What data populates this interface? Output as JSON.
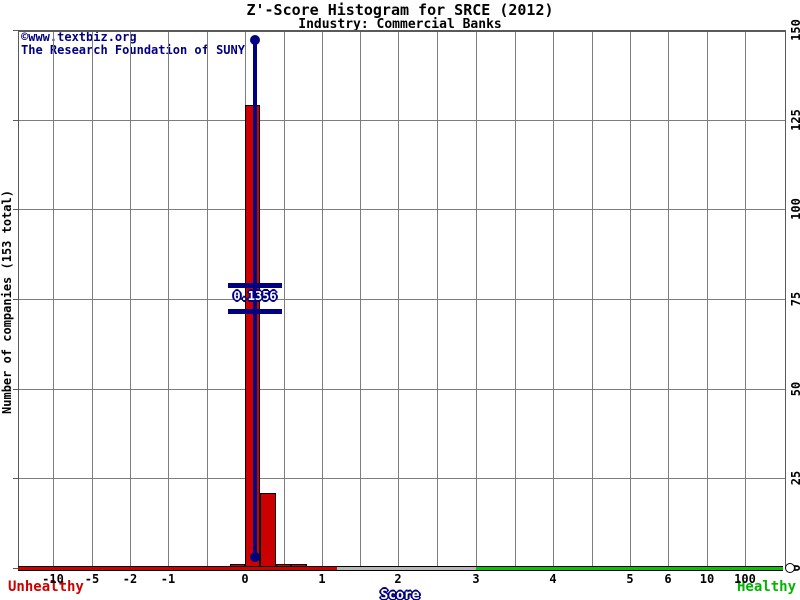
{
  "header": {
    "title": "Z'-Score Histogram for SRCE (2012)",
    "subtitle": "Industry: Commercial Banks"
  },
  "credit": {
    "line1": "©www.textbiz.org",
    "line2": "The Research Foundation of SUNY"
  },
  "axes": {
    "y_label": "Number of companies (153 total)",
    "x_label": "Score"
  },
  "zone_labels": {
    "unhealthy": "Unhealthy",
    "healthy": "Healthy"
  },
  "marker": {
    "label": "0.1356"
  },
  "colors": {
    "bar_red": "#cc0000",
    "marker_navy": "#000080",
    "healthy_green": "#00b400",
    "axis_red": "#cc0000",
    "axis_gray": "#b8b8b8",
    "axis_green": "#00c800",
    "gridline_gray": "#7d7d7d"
  },
  "chart_data": {
    "type": "bar",
    "title": "Z'-Score Histogram for SRCE (2012)",
    "subtitle": "Industry: Commercial Banks",
    "xlabel": "Score",
    "ylabel": "Number of companies (153 total)",
    "total_companies": 153,
    "company": "SRCE",
    "year": 2012,
    "industry": "Commercial Banks",
    "mean_z_score": 0.1356,
    "bin_width": 0.2,
    "bins": [
      {
        "from": -0.2,
        "to": 0.0,
        "count": 1
      },
      {
        "from": 0.0,
        "to": 0.2,
        "count": 129
      },
      {
        "from": 0.2,
        "to": 0.4,
        "count": 21
      },
      {
        "from": 0.4,
        "to": 0.6,
        "count": 1
      },
      {
        "from": 0.6,
        "to": 0.8,
        "count": 1
      }
    ],
    "x_ticks": [
      -10,
      -5,
      -2,
      -1,
      0,
      1,
      2,
      3,
      4,
      5,
      6,
      10,
      100
    ],
    "x_minor_gridline_scores": [
      -0.5,
      0.5,
      1.5,
      2.5,
      3.5,
      4.5
    ],
    "y_ticks": [
      0,
      25,
      50,
      75,
      100,
      125,
      150
    ],
    "ylim": [
      0,
      150
    ],
    "grid": true,
    "zones": [
      {
        "name": "unhealthy",
        "to_score": 1.2,
        "color": "#cc0000"
      },
      {
        "name": "neutral",
        "to_score": 3.0,
        "color": "#b8b8b8"
      },
      {
        "name": "healthy",
        "to_score": 1000,
        "color": "#00c800"
      }
    ]
  }
}
